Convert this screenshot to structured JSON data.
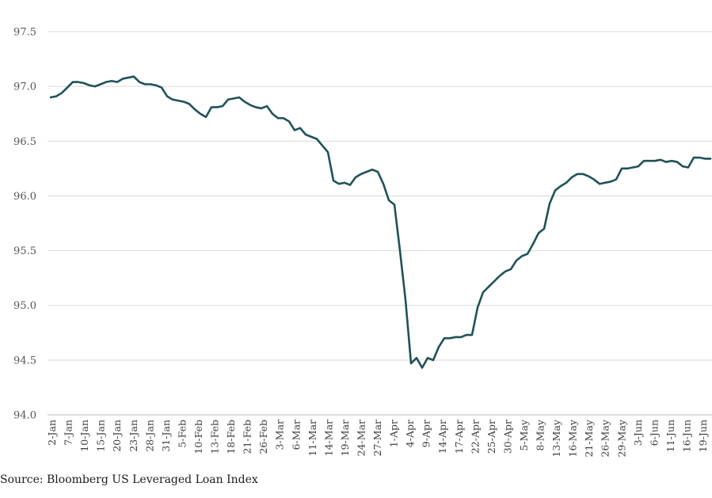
{
  "source_note": "Source: Bloomberg US Leveraged Loan Index",
  "colors": {
    "line": "#1f5258",
    "grid": "#d9d9d9",
    "tick_text": "#555555"
  },
  "chart_data": {
    "type": "line",
    "title": "",
    "xlabel": "",
    "ylabel": "",
    "ylim": [
      94.0,
      97.5
    ],
    "yticks": [
      "94.0",
      "94.5",
      "95.0",
      "95.5",
      "96.0",
      "96.5",
      "97.0",
      "97.5"
    ],
    "grid": true,
    "x_tick_labels": [
      "2-Jan",
      "7-Jan",
      "10-Jan",
      "15-Jan",
      "20-Jan",
      "23-Jan",
      "28-Jan",
      "31-Jan",
      "5-Feb",
      "10-Feb",
      "13-Feb",
      "18-Feb",
      "21-Feb",
      "26-Feb",
      "3-Mar",
      "6-Mar",
      "11-Mar",
      "14-Mar",
      "19-Mar",
      "24-Mar",
      "27-Mar",
      "1-Apr",
      "4-Apr",
      "9-Apr",
      "14-Apr",
      "17-Apr",
      "22-Apr",
      "25-Apr",
      "30-Apr",
      "5-May",
      "8-May",
      "13-May",
      "16-May",
      "21-May",
      "26-May",
      "29-May",
      "3-Jun",
      "6-Jun",
      "11-Jun",
      "16-Jun",
      "19-Jun"
    ],
    "series": [
      {
        "values": [
          96.9,
          96.91,
          96.94,
          96.99,
          97.04,
          97.04,
          97.03,
          97.01,
          97.0,
          97.02,
          97.04,
          97.05,
          97.04,
          97.07,
          97.08,
          97.09,
          97.04,
          97.02,
          97.02,
          97.01,
          96.99,
          96.91,
          96.88,
          96.87,
          96.86,
          96.84,
          96.79,
          96.75,
          96.72,
          96.81,
          96.81,
          96.82,
          96.88,
          96.89,
          96.9,
          96.86,
          96.83,
          96.81,
          96.8,
          96.82,
          96.75,
          96.71,
          96.71,
          96.68,
          96.6,
          96.62,
          96.56,
          96.54,
          96.52,
          96.46,
          96.4,
          96.14,
          96.11,
          96.12,
          96.1,
          96.17,
          96.2,
          96.22,
          96.24,
          96.22,
          96.11,
          95.96,
          95.92,
          95.5,
          95.05,
          94.47,
          94.52,
          94.43,
          94.52,
          94.5,
          94.62,
          94.7,
          94.7,
          94.71,
          94.71,
          94.73,
          94.73,
          94.98,
          95.12,
          95.17,
          95.22,
          95.27,
          95.31,
          95.33,
          95.41,
          95.45,
          95.47,
          95.56,
          95.66,
          95.7,
          95.93,
          96.05,
          96.09,
          96.12,
          96.17,
          96.2,
          96.2,
          96.18,
          96.15,
          96.11,
          96.12,
          96.13,
          96.15,
          96.25,
          96.25,
          96.26,
          96.27,
          96.32,
          96.32,
          96.32,
          96.33,
          96.31,
          96.32,
          96.31,
          96.27,
          96.26,
          96.35,
          96.35,
          96.34,
          96.34
        ]
      }
    ]
  }
}
